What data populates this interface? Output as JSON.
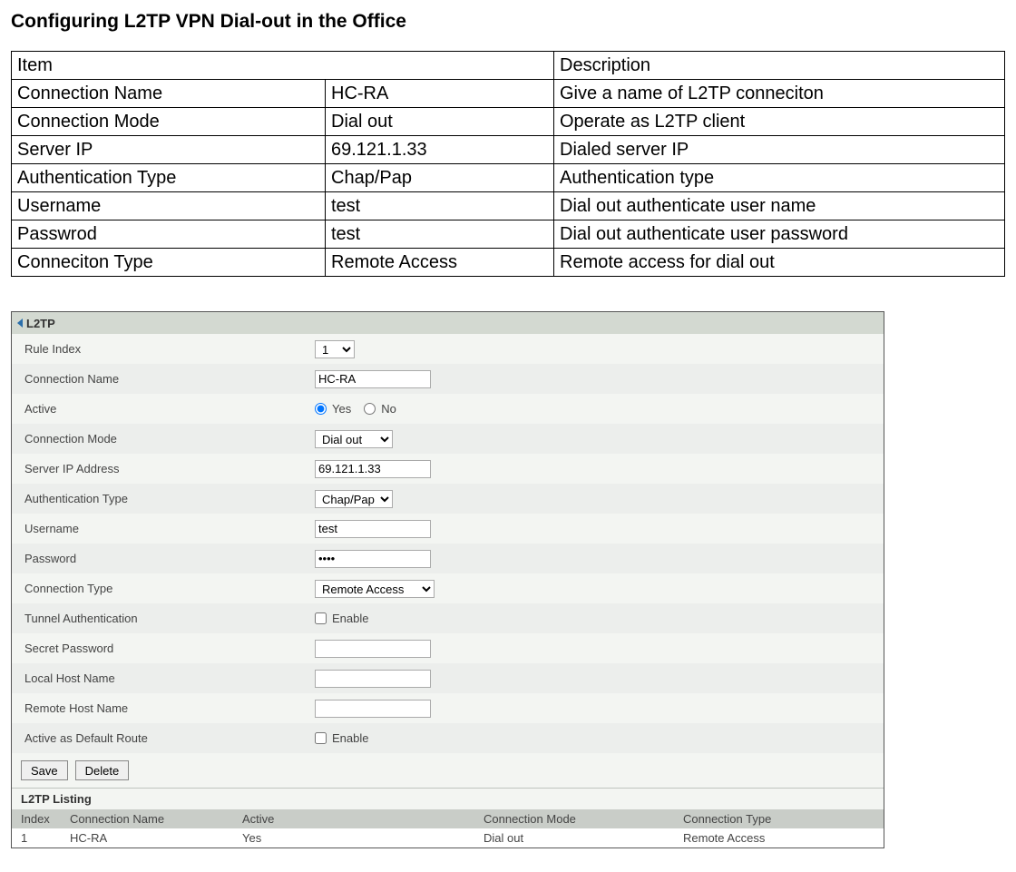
{
  "doc": {
    "title": "Configuring L2TP VPN Dial-out in the Office"
  },
  "desc_table": {
    "header_item": "Item",
    "header_desc": "Description",
    "rows": [
      {
        "item": "Connection Name",
        "value": "HC-RA",
        "desc": "Give a name of L2TP conneciton"
      },
      {
        "item": "Connection Mode",
        "value": "Dial out",
        "desc": "Operate as L2TP client"
      },
      {
        "item": "Server IP",
        "value": "69.121.1.33",
        "desc": "Dialed server IP"
      },
      {
        "item": "Authentication Type",
        "value": "Chap/Pap",
        "desc": "Authentication type"
      },
      {
        "item": "Username",
        "value": "test",
        "desc": "Dial out authenticate user name"
      },
      {
        "item": "Passwrod",
        "value": "test",
        "desc": "Dial out authenticate user password"
      },
      {
        "item": "Conneciton Type",
        "value": "Remote Access",
        "desc": "Remote access for dial out"
      }
    ]
  },
  "panel": {
    "title": "L2TP",
    "colors": {
      "panel_bg": "#f3f5f2",
      "header_bg": "#d3d9d1",
      "alt_row_bg": "#eceeec",
      "listing_header_bg": "#c9cdc8",
      "border": "#565656",
      "triangle": "#2b6fab"
    },
    "fields": {
      "rule_index": {
        "label": "Rule Index",
        "value": "1"
      },
      "connection_name": {
        "label": "Connection Name",
        "value": "HC-RA"
      },
      "active": {
        "label": "Active",
        "yes": "Yes",
        "no": "No",
        "selected": "yes"
      },
      "connection_mode": {
        "label": "Connection Mode",
        "value": "Dial out"
      },
      "server_ip": {
        "label": "Server IP Address",
        "value": "69.121.1.33"
      },
      "auth_type": {
        "label": "Authentication Type",
        "value": "Chap/Pap"
      },
      "username": {
        "label": "Username",
        "value": "test"
      },
      "password": {
        "label": "Password",
        "value": "••••"
      },
      "connection_type": {
        "label": "Connection Type",
        "value": "Remote Access"
      },
      "tunnel_auth": {
        "label": "Tunnel Authentication",
        "checkbox_label": "Enable",
        "checked": false
      },
      "secret_password": {
        "label": "Secret Password",
        "value": ""
      },
      "local_host": {
        "label": "Local Host Name",
        "value": ""
      },
      "remote_host": {
        "label": "Remote Host Name",
        "value": ""
      },
      "default_route": {
        "label": "Active as Default Route",
        "checkbox_label": "Enable",
        "checked": false
      }
    },
    "buttons": {
      "save": "Save",
      "delete": "Delete"
    },
    "listing": {
      "title": "L2TP Listing",
      "headers": {
        "index": "Index",
        "name": "Connection Name",
        "active": "Active",
        "mode": "Connection Mode",
        "type": "Connection Type"
      },
      "rows": [
        {
          "index": "1",
          "name": "HC-RA",
          "active": "Yes",
          "mode": "Dial out",
          "type": "Remote Access"
        }
      ]
    }
  }
}
